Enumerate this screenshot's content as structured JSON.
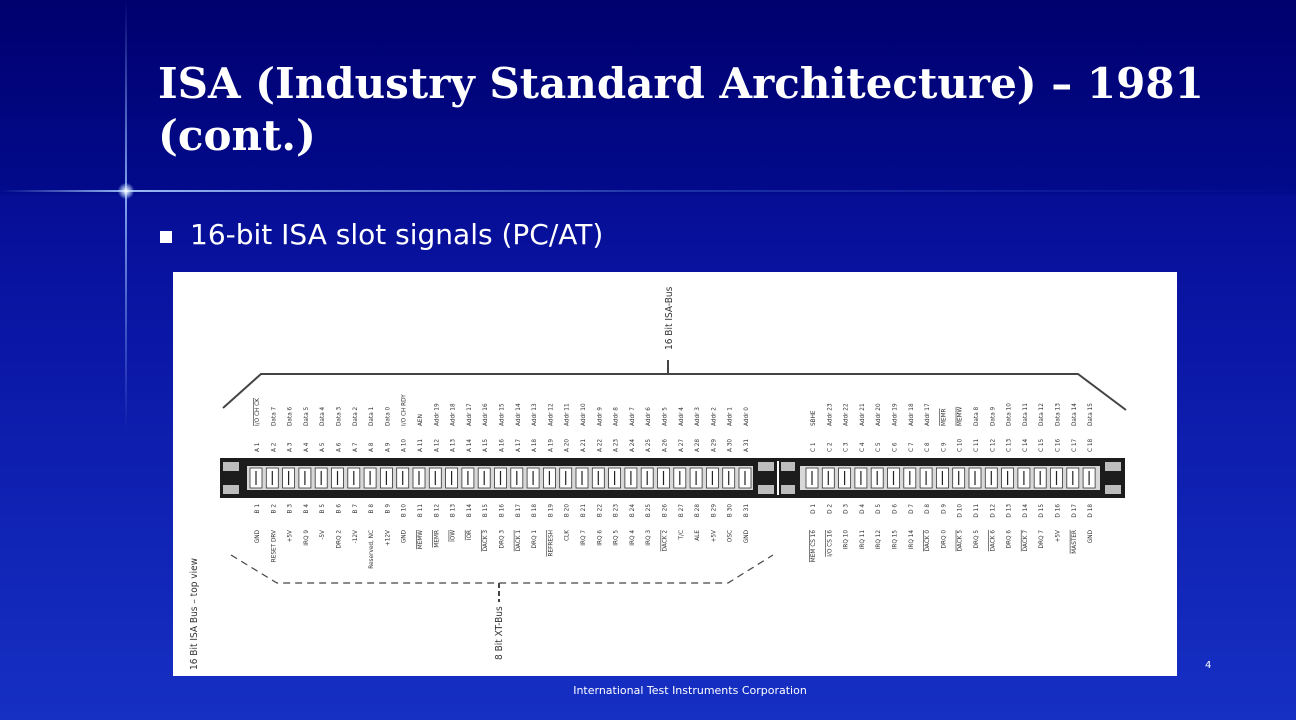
{
  "slide": {
    "title": "ISA (Industry Standard Architecture) – 1981 (cont.)",
    "bullet": "16-bit ISA slot signals (PC/AT)",
    "page_number": "4",
    "footer": "International Test Instruments Corporation"
  },
  "diagram": {
    "label_16bit": "16 Bit ISA-Bus",
    "label_8bit": "8 Bit XT-Bus",
    "label_view": "16 Bit ISA Bus – top view",
    "a_side": [
      {
        "pin": "A 1",
        "sig": "I/O CH CK",
        "over": true
      },
      {
        "pin": "A 2",
        "sig": "Data 7"
      },
      {
        "pin": "A 3",
        "sig": "Data 6"
      },
      {
        "pin": "A 4",
        "sig": "Data 5"
      },
      {
        "pin": "A 5",
        "sig": "Data 4"
      },
      {
        "pin": "A 6",
        "sig": "Data 3"
      },
      {
        "pin": "A 7",
        "sig": "Data 2"
      },
      {
        "pin": "A 8",
        "sig": "Data 1"
      },
      {
        "pin": "A 9",
        "sig": "Data 0"
      },
      {
        "pin": "A 10",
        "sig": "I/O CH RDY"
      },
      {
        "pin": "A 11",
        "sig": "AEN"
      },
      {
        "pin": "A 12",
        "sig": "Addr 19"
      },
      {
        "pin": "A 13",
        "sig": "Addr 18"
      },
      {
        "pin": "A 14",
        "sig": "Addr 17"
      },
      {
        "pin": "A 15",
        "sig": "Addr 16"
      },
      {
        "pin": "A 16",
        "sig": "Addr 15"
      },
      {
        "pin": "A 17",
        "sig": "Addr 14"
      },
      {
        "pin": "A 18",
        "sig": "Addr 13"
      },
      {
        "pin": "A 19",
        "sig": "Addr 12"
      },
      {
        "pin": "A 20",
        "sig": "Addr 11"
      },
      {
        "pin": "A 21",
        "sig": "Addr 10"
      },
      {
        "pin": "A 22",
        "sig": "Addr 9"
      },
      {
        "pin": "A 23",
        "sig": "Addr 8"
      },
      {
        "pin": "A 24",
        "sig": "Addr 7"
      },
      {
        "pin": "A 25",
        "sig": "Addr 6"
      },
      {
        "pin": "A 26",
        "sig": "Addr 5"
      },
      {
        "pin": "A 27",
        "sig": "Addr 4"
      },
      {
        "pin": "A 28",
        "sig": "Addr 3"
      },
      {
        "pin": "A 29",
        "sig": "Addr 2"
      },
      {
        "pin": "A 30",
        "sig": "Addr 1"
      },
      {
        "pin": "A 31",
        "sig": "Addr 0"
      }
    ],
    "b_side": [
      {
        "pin": "B 1",
        "sig": "GND"
      },
      {
        "pin": "B 2",
        "sig": "RESET DRV"
      },
      {
        "pin": "B 3",
        "sig": "+5V"
      },
      {
        "pin": "B 4",
        "sig": "IRQ 9"
      },
      {
        "pin": "B 5",
        "sig": "-5V"
      },
      {
        "pin": "B 6",
        "sig": "DRQ 2"
      },
      {
        "pin": "B 7",
        "sig": "-12V"
      },
      {
        "pin": "B 8",
        "sig": "Reserved, NC"
      },
      {
        "pin": "B 9",
        "sig": "+12V"
      },
      {
        "pin": "B 10",
        "sig": "GND"
      },
      {
        "pin": "B 11",
        "sig": "MEMW",
        "over": true
      },
      {
        "pin": "B 12",
        "sig": "MEMR",
        "over": true
      },
      {
        "pin": "B 13",
        "sig": "IOW",
        "over": true
      },
      {
        "pin": "B 14",
        "sig": "IOR",
        "over": true
      },
      {
        "pin": "B 15",
        "sig": "DACK 3",
        "over": true
      },
      {
        "pin": "B 16",
        "sig": "DRQ 3"
      },
      {
        "pin": "B 17",
        "sig": "DACK 1",
        "over": true
      },
      {
        "pin": "B 18",
        "sig": "DRQ 1"
      },
      {
        "pin": "B 19",
        "sig": "REFRESH",
        "over": true
      },
      {
        "pin": "B 20",
        "sig": "CLK"
      },
      {
        "pin": "B 21",
        "sig": "IRQ 7"
      },
      {
        "pin": "B 22",
        "sig": "IRQ 6"
      },
      {
        "pin": "B 23",
        "sig": "IRQ 5"
      },
      {
        "pin": "B 24",
        "sig": "IRQ 4"
      },
      {
        "pin": "B 25",
        "sig": "IRQ 3"
      },
      {
        "pin": "B 26",
        "sig": "DACK 2",
        "over": true
      },
      {
        "pin": "B 27",
        "sig": "T/C"
      },
      {
        "pin": "B 28",
        "sig": "ALE"
      },
      {
        "pin": "B 29",
        "sig": "+5V"
      },
      {
        "pin": "B 30",
        "sig": "OSC"
      },
      {
        "pin": "B 31",
        "sig": "GND"
      }
    ],
    "c_side": [
      {
        "pin": "C 1",
        "sig": "SBHE"
      },
      {
        "pin": "C 2",
        "sig": "Addr 23"
      },
      {
        "pin": "C 3",
        "sig": "Addr 22"
      },
      {
        "pin": "C 4",
        "sig": "Addr 21"
      },
      {
        "pin": "C 5",
        "sig": "Addr 20"
      },
      {
        "pin": "C 6",
        "sig": "Addr 19"
      },
      {
        "pin": "C 7",
        "sig": "Addr 18"
      },
      {
        "pin": "C 8",
        "sig": "Addr 17"
      },
      {
        "pin": "C 9",
        "sig": "MEMR",
        "over": true
      },
      {
        "pin": "C 10",
        "sig": "MEMW",
        "over": true
      },
      {
        "pin": "C 11",
        "sig": "Data 8"
      },
      {
        "pin": "C 12",
        "sig": "Data 9"
      },
      {
        "pin": "C 13",
        "sig": "Data 10"
      },
      {
        "pin": "C 14",
        "sig": "Data 11"
      },
      {
        "pin": "C 15",
        "sig": "Data 12"
      },
      {
        "pin": "C 16",
        "sig": "Data 13"
      },
      {
        "pin": "C 17",
        "sig": "Data 14"
      },
      {
        "pin": "C 18",
        "sig": "Data 15"
      }
    ],
    "d_side": [
      {
        "pin": "D 1",
        "sig": "MEM CS 16",
        "over": true
      },
      {
        "pin": "D 2",
        "sig": "I/O CS 16",
        "over": true
      },
      {
        "pin": "D 3",
        "sig": "IRQ 10"
      },
      {
        "pin": "D 4",
        "sig": "IRQ 11"
      },
      {
        "pin": "D 5",
        "sig": "IRQ 12"
      },
      {
        "pin": "D 6",
        "sig": "IRQ 15"
      },
      {
        "pin": "D 7",
        "sig": "IRQ 14"
      },
      {
        "pin": "D 8",
        "sig": "DACK 0",
        "over": true
      },
      {
        "pin": "D 9",
        "sig": "DRQ 0"
      },
      {
        "pin": "D 10",
        "sig": "DACK 5",
        "over": true
      },
      {
        "pin": "D 11",
        "sig": "DRQ 5"
      },
      {
        "pin": "D 12",
        "sig": "DACK 6",
        "over": true
      },
      {
        "pin": "D 13",
        "sig": "DRQ 6"
      },
      {
        "pin": "D 14",
        "sig": "DACK 7",
        "over": true
      },
      {
        "pin": "D 15",
        "sig": "DRQ 7"
      },
      {
        "pin": "D 16",
        "sig": "+5V"
      },
      {
        "pin": "D 17",
        "sig": "MASTER",
        "over": true
      },
      {
        "pin": "D 18",
        "sig": "GND"
      }
    ]
  }
}
